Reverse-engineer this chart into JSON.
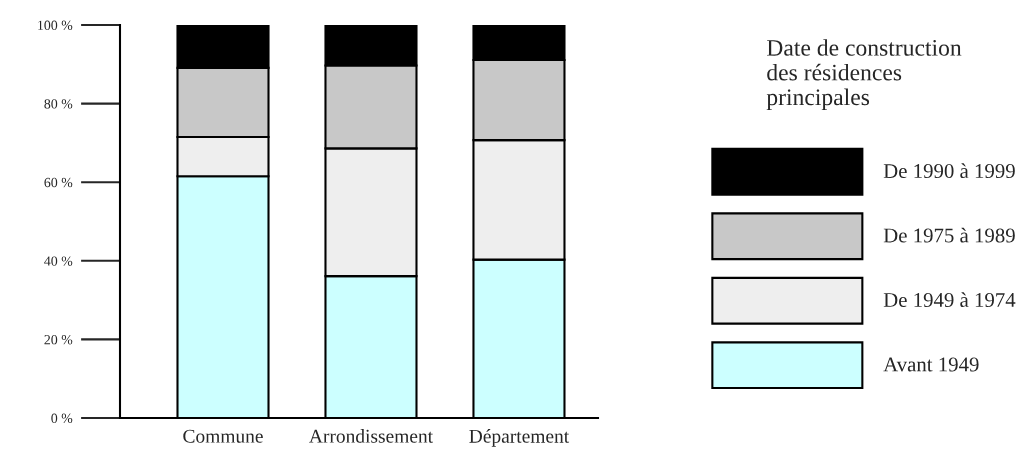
{
  "chart_data": {
    "type": "bar",
    "stacked": true,
    "categories": [
      "Commune",
      "Arrondissement",
      "Département"
    ],
    "series": [
      {
        "name": "Avant 1949",
        "color": "#ccffff",
        "values": [
          61.5,
          36.1,
          40.3
        ]
      },
      {
        "name": "De 1949 à 1974",
        "color": "#eeeeee",
        "values": [
          10.0,
          32.5,
          30.4
        ]
      },
      {
        "name": "De 1975 à 1989",
        "color": "#c8c8c8",
        "values": [
          17.6,
          21.1,
          20.4
        ]
      },
      {
        "name": "De 1990 à 1999",
        "color": "#000000",
        "values": [
          10.9,
          10.3,
          8.9
        ]
      }
    ],
    "legend_title": "Date de construction\ndes résidences\nprincipales",
    "legend": "right",
    "ylim": [
      0,
      100
    ],
    "yticks": [
      {
        "value": 0,
        "label": "0 %"
      },
      {
        "value": 20,
        "label": "20 %"
      },
      {
        "value": 40,
        "label": "40 %"
      },
      {
        "value": 60,
        "label": "60 %"
      },
      {
        "value": 80,
        "label": "80 %"
      },
      {
        "value": 100,
        "label": "100 %"
      }
    ],
    "grid": false
  }
}
